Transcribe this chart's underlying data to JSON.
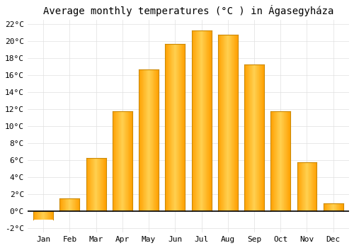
{
  "title": "Average monthly temperatures (°C ) in Ágasegyháza",
  "months": [
    "Jan",
    "Feb",
    "Mar",
    "Apr",
    "May",
    "Jun",
    "Jul",
    "Aug",
    "Sep",
    "Oct",
    "Nov",
    "Dec"
  ],
  "values": [
    -1.0,
    1.5,
    6.3,
    11.8,
    16.7,
    19.7,
    21.3,
    20.8,
    17.3,
    11.8,
    5.8,
    0.9
  ],
  "bar_color_center": "#FFD050",
  "bar_color_edge": "#FFA000",
  "ylim": [
    -2.5,
    22.5
  ],
  "yticks": [
    -2,
    0,
    2,
    4,
    6,
    8,
    10,
    12,
    14,
    16,
    18,
    20,
    22
  ],
  "ytick_labels": [
    "-2°C",
    "0°C",
    "2°C",
    "4°C",
    "6°C",
    "8°C",
    "10°C",
    "12°C",
    "14°C",
    "16°C",
    "18°C",
    "20°C",
    "22°C"
  ],
  "background_color": "#ffffff",
  "grid_color": "#e0e0e0",
  "title_fontsize": 10,
  "tick_fontsize": 8,
  "font_family": "monospace",
  "bar_width": 0.75
}
